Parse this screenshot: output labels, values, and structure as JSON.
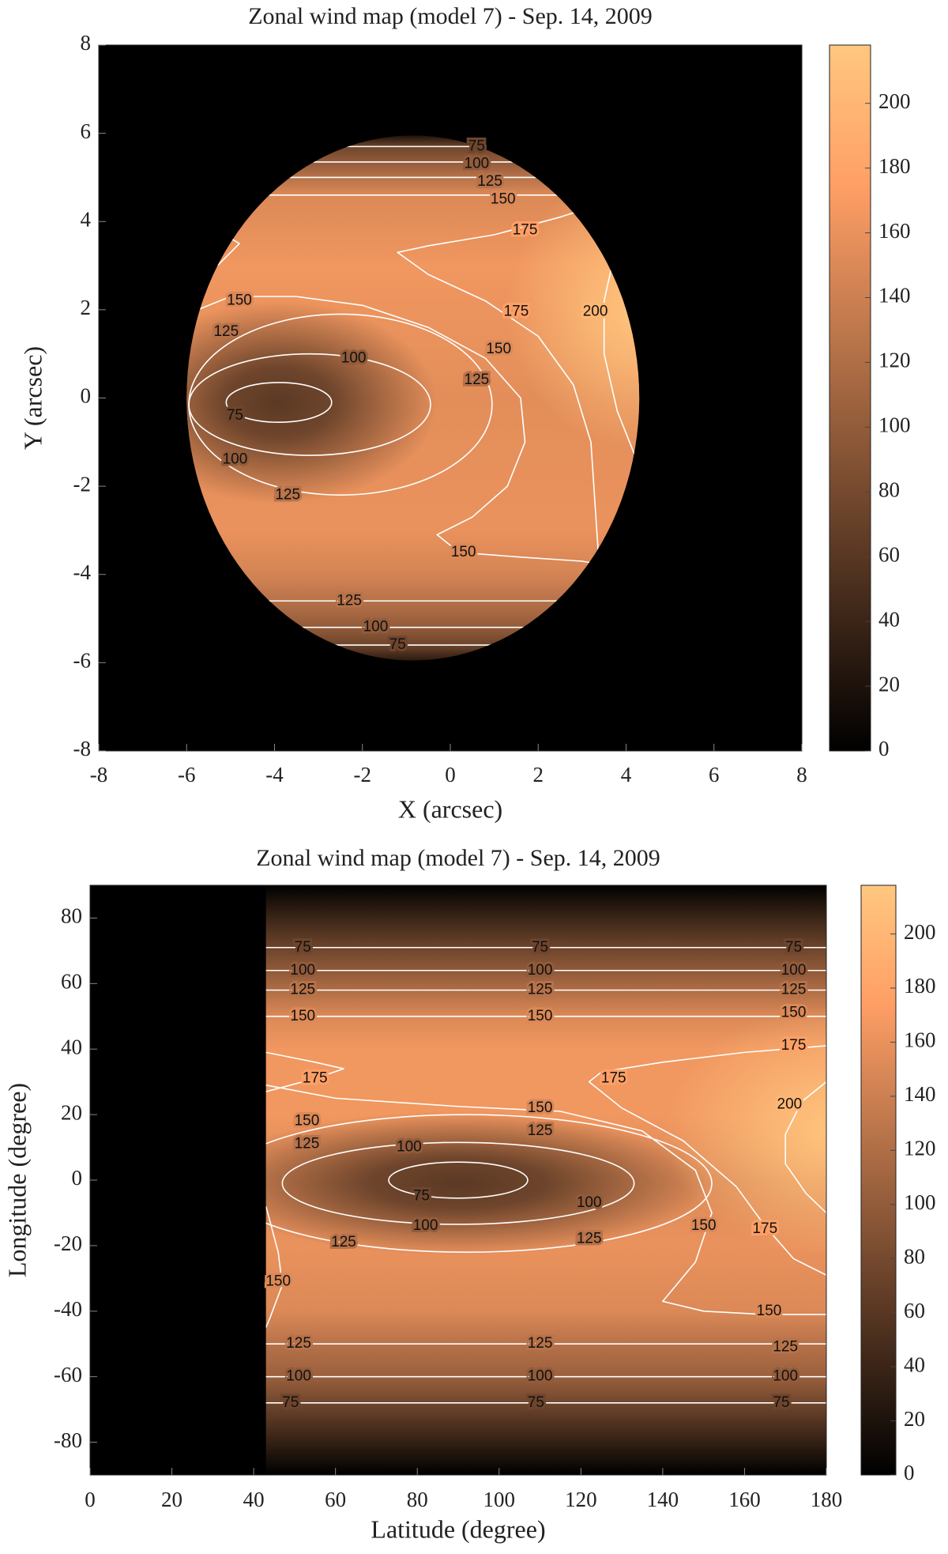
{
  "chart_data": [
    {
      "type": "contour",
      "title": "Zonal wind map (model 7) - Sep. 14, 2009",
      "xlabel": "X (arcsec)",
      "ylabel": "Y (arcsec)",
      "xlim": [
        -8,
        8
      ],
      "ylim": [
        -8,
        8
      ],
      "xticks": [
        -8,
        -6,
        -4,
        -2,
        0,
        2,
        4,
        6,
        8
      ],
      "yticks": [
        -8,
        -6,
        -4,
        -2,
        0,
        2,
        4,
        6,
        8
      ],
      "colorbar": {
        "clim": [
          0,
          218
        ],
        "ticks": [
          0,
          20,
          40,
          60,
          80,
          100,
          120,
          140,
          160,
          180,
          200
        ],
        "colormap": "copper"
      },
      "contour_labels": [
        {
          "level": 75,
          "x": 0.6,
          "y": 5.7
        },
        {
          "level": 100,
          "x": 0.6,
          "y": 5.3
        },
        {
          "level": 125,
          "x": 0.9,
          "y": 4.9
        },
        {
          "level": 150,
          "x": 1.2,
          "y": 4.5
        },
        {
          "level": 175,
          "x": 1.7,
          "y": 3.8
        },
        {
          "level": 200,
          "x": 3.3,
          "y": 1.95
        },
        {
          "level": 175,
          "x": 1.5,
          "y": 1.95
        },
        {
          "level": 150,
          "x": 1.1,
          "y": 1.1
        },
        {
          "level": 125,
          "x": 0.6,
          "y": 0.4
        },
        {
          "level": 100,
          "x": -2.2,
          "y": 0.9
        },
        {
          "level": 150,
          "x": -4.8,
          "y": 2.2
        },
        {
          "level": 125,
          "x": -5.1,
          "y": 1.5
        },
        {
          "level": 75,
          "x": -4.9,
          "y": -0.4
        },
        {
          "level": 100,
          "x": -4.9,
          "y": -1.4
        },
        {
          "level": 125,
          "x": -3.7,
          "y": -2.2
        },
        {
          "level": 150,
          "x": 0.3,
          "y": -3.5
        },
        {
          "level": 125,
          "x": -2.3,
          "y": -4.6
        },
        {
          "level": 100,
          "x": -1.7,
          "y": -5.2
        },
        {
          "level": 75,
          "x": -1.2,
          "y": -5.6
        }
      ]
    },
    {
      "type": "contour",
      "title": "Zonal wind map (model 7) - Sep. 14, 2009",
      "xlabel": "Latitude (degree)",
      "ylabel": "Longitude (degree)",
      "xlim": [
        0,
        180
      ],
      "ylim": [
        -90,
        90
      ],
      "xticks": [
        0,
        20,
        40,
        60,
        80,
        100,
        120,
        140,
        160,
        180
      ],
      "yticks": [
        -80,
        -60,
        -40,
        -20,
        0,
        20,
        40,
        60,
        80
      ],
      "colorbar": {
        "clim": [
          0,
          218
        ],
        "ticks": [
          0,
          20,
          40,
          60,
          80,
          100,
          120,
          140,
          160,
          180,
          200
        ],
        "colormap": "copper"
      },
      "contour_labels": [
        {
          "level": 75,
          "x": 52,
          "y": 71
        },
        {
          "level": 75,
          "x": 110,
          "y": 71
        },
        {
          "level": 75,
          "x": 172,
          "y": 71
        },
        {
          "level": 100,
          "x": 52,
          "y": 64
        },
        {
          "level": 100,
          "x": 110,
          "y": 64
        },
        {
          "level": 100,
          "x": 172,
          "y": 64
        },
        {
          "level": 125,
          "x": 52,
          "y": 58
        },
        {
          "level": 125,
          "x": 110,
          "y": 58
        },
        {
          "level": 125,
          "x": 172,
          "y": 58
        },
        {
          "level": 150,
          "x": 52,
          "y": 50
        },
        {
          "level": 150,
          "x": 110,
          "y": 50
        },
        {
          "level": 150,
          "x": 172,
          "y": 51
        },
        {
          "level": 175,
          "x": 172,
          "y": 41
        },
        {
          "level": 175,
          "x": 55,
          "y": 31
        },
        {
          "level": 175,
          "x": 128,
          "y": 31
        },
        {
          "level": 150,
          "x": 53,
          "y": 18
        },
        {
          "level": 150,
          "x": 110,
          "y": 22
        },
        {
          "level": 125,
          "x": 53,
          "y": 11
        },
        {
          "level": 125,
          "x": 110,
          "y": 15
        },
        {
          "level": 100,
          "x": 78,
          "y": 10
        },
        {
          "level": 200,
          "x": 171,
          "y": 23
        },
        {
          "level": 75,
          "x": 81,
          "y": -5
        },
        {
          "level": 100,
          "x": 82,
          "y": -14
        },
        {
          "level": 100,
          "x": 122,
          "y": -7
        },
        {
          "level": 125,
          "x": 62,
          "y": -19
        },
        {
          "level": 125,
          "x": 122,
          "y": -18
        },
        {
          "level": 150,
          "x": 150,
          "y": -14
        },
        {
          "level": 175,
          "x": 165,
          "y": -15
        },
        {
          "level": 150,
          "x": 46,
          "y": -31
        },
        {
          "level": 150,
          "x": 166,
          "y": -40
        },
        {
          "level": 125,
          "x": 51,
          "y": -50
        },
        {
          "level": 125,
          "x": 110,
          "y": -50
        },
        {
          "level": 125,
          "x": 170,
          "y": -51
        },
        {
          "level": 100,
          "x": 51,
          "y": -60
        },
        {
          "level": 100,
          "x": 110,
          "y": -60
        },
        {
          "level": 100,
          "x": 170,
          "y": -60
        },
        {
          "level": 75,
          "x": 49,
          "y": -68
        },
        {
          "level": 75,
          "x": 109,
          "y": -68
        },
        {
          "level": 75,
          "x": 169,
          "y": -68
        }
      ]
    }
  ]
}
